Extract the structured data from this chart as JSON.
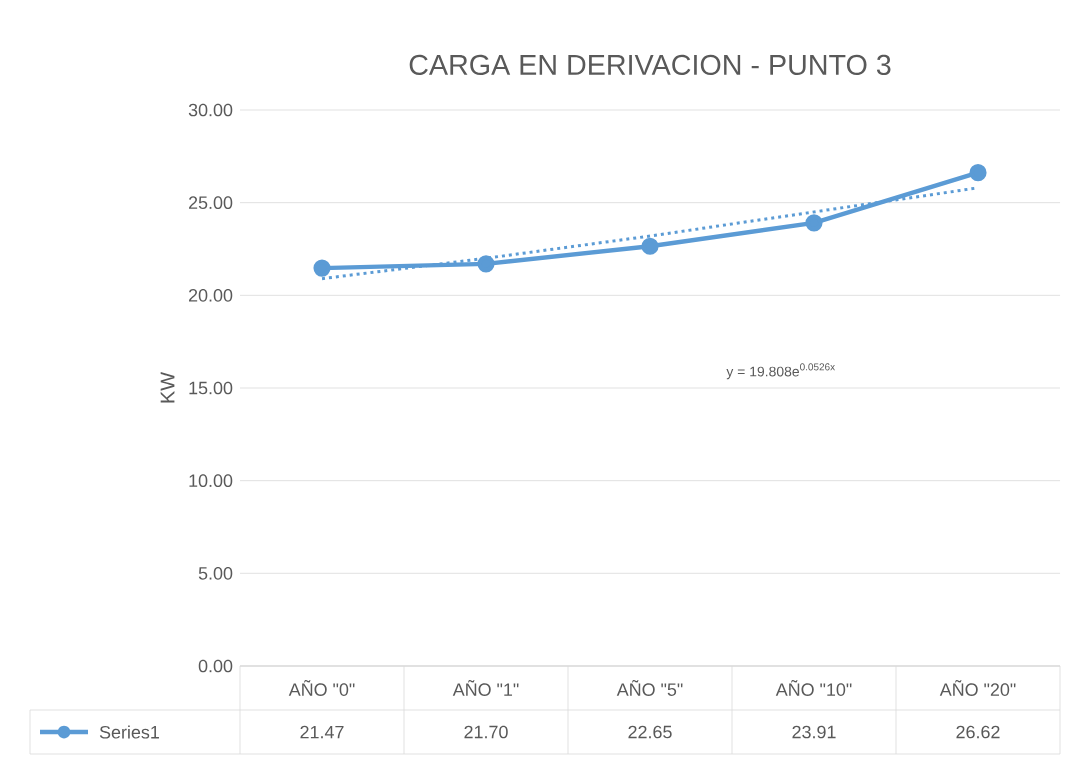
{
  "chart_data": {
    "type": "line",
    "title": "CARGA EN DERIVACION - PUNTO 3",
    "ylabel": "KW",
    "categories": [
      "AÑO \"0\"",
      "AÑO \"1\"",
      "AÑO \"5\"",
      "AÑO \"10\"",
      "AÑO \"20\""
    ],
    "series": [
      {
        "name": "Series1",
        "color": "#5b9bd5",
        "marker": "circle",
        "line_style": "solid",
        "values": [
          21.47,
          21.7,
          22.65,
          23.91,
          26.62
        ],
        "value_labels": [
          "21.47",
          "21.70",
          "22.65",
          "23.91",
          "26.62"
        ]
      },
      {
        "type": "line",
        "color": "#5b9bd5",
        "marker": "none",
        "line_style": "dotted",
        "values": [
          20.9,
          22.0,
          23.2,
          24.5,
          25.8
        ]
      }
    ],
    "annotations": [
      "y = 19.808e$^{0.0526x}$"
    ],
    "ylim": [
      0,
      30
    ],
    "yticks": [
      {
        "value": 0,
        "label": "0.00"
      },
      {
        "value": 5,
        "label": "5.00"
      },
      {
        "value": 10,
        "label": "10.00"
      },
      {
        "value": 15,
        "label": "15.00"
      },
      {
        "value": 20,
        "label": "20.00"
      },
      {
        "value": 25,
        "label": "25.00"
      },
      {
        "value": 30,
        "label": "30.00"
      }
    ],
    "grid": "y",
    "legend": "bottom"
  }
}
